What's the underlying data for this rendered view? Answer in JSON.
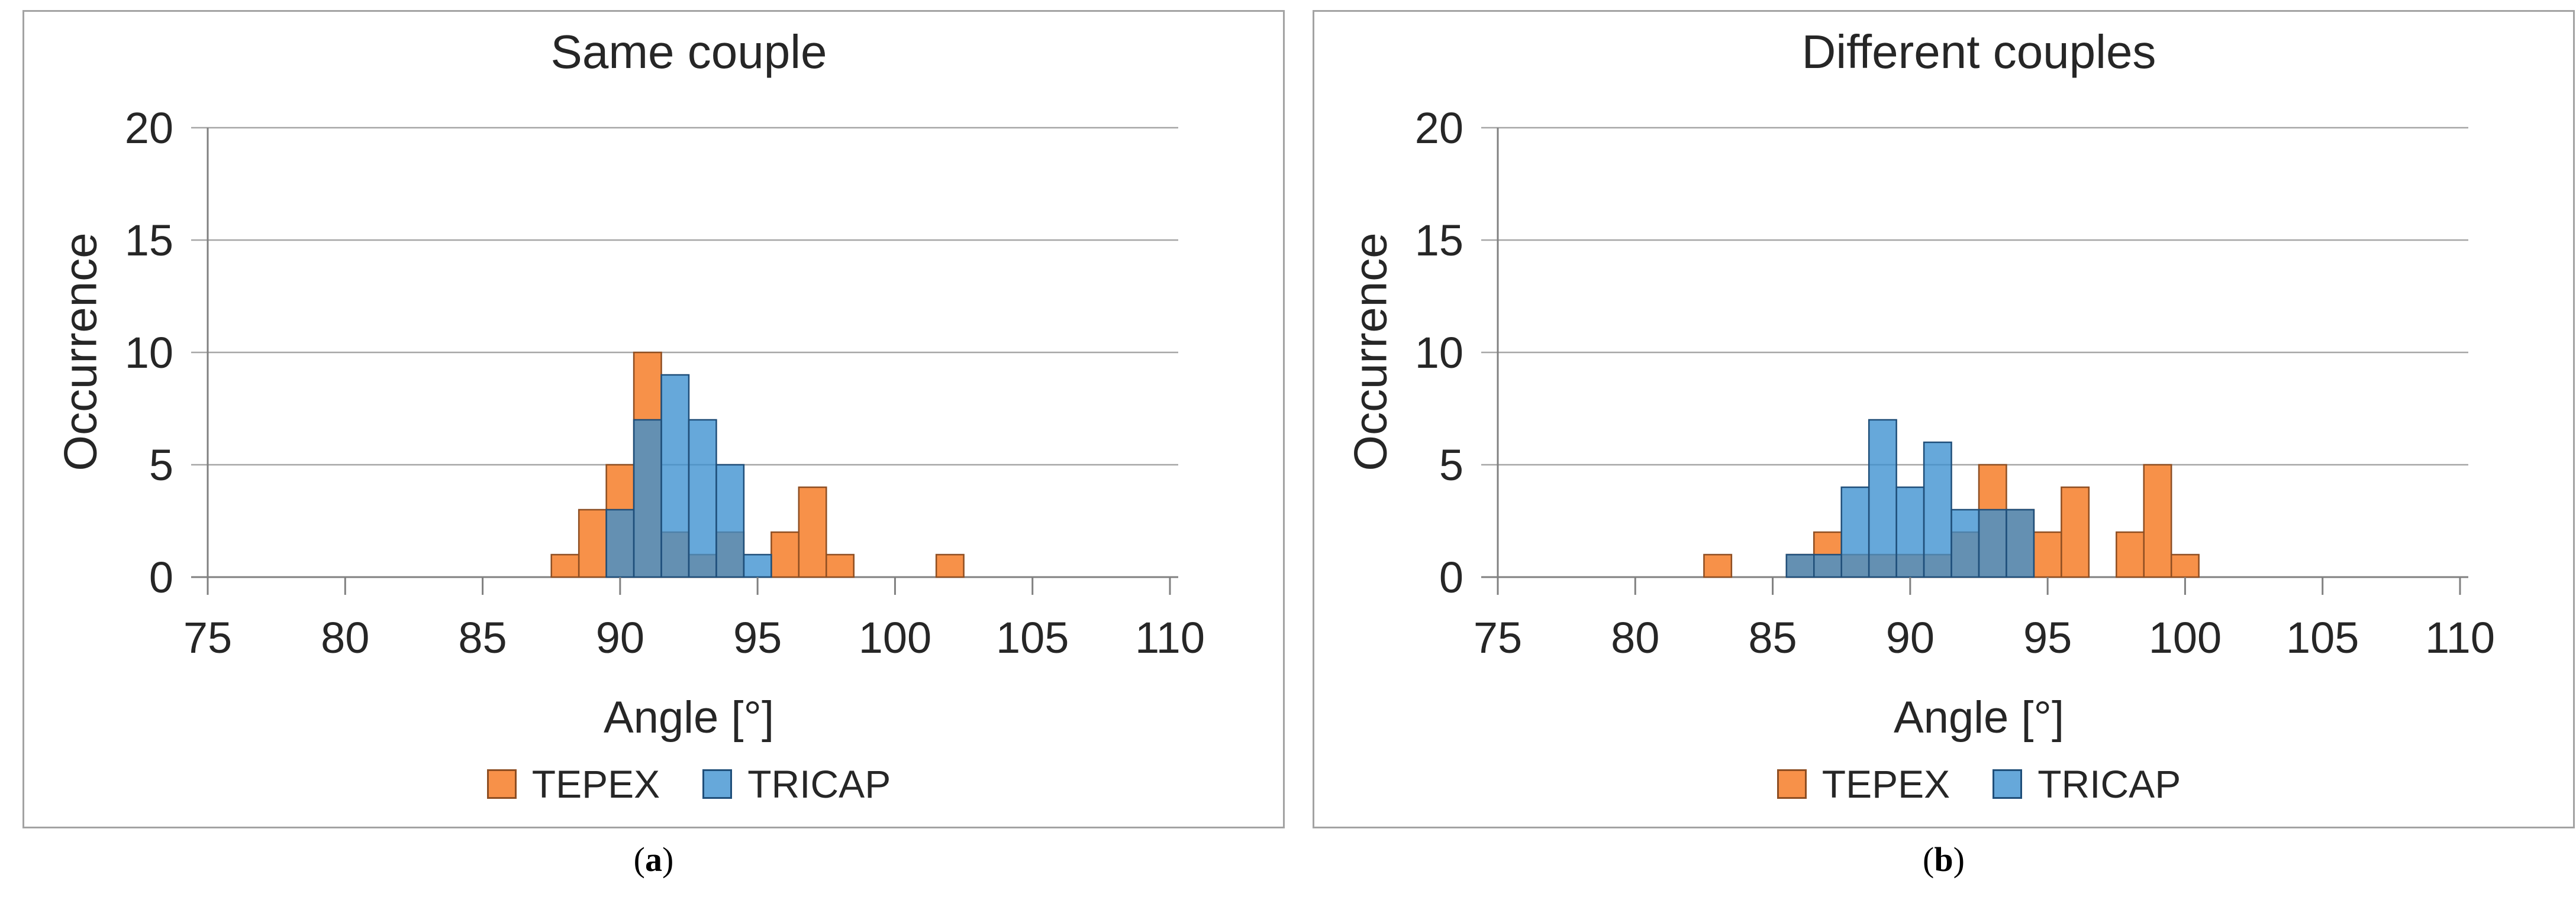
{
  "figure": {
    "background": "#ffffff",
    "panel_border_color": "#a3a3a3",
    "gridline_color": "#a6a6a6",
    "axis_color": "#808080"
  },
  "chart_data": [
    {
      "type": "bar",
      "subtype": "overlapping-histogram",
      "title": "Same couple",
      "xlabel": "Angle [°]",
      "ylabel": "Occurrence",
      "caption": {
        "open": "(",
        "letter": "a",
        "close": ")"
      },
      "xlim": [
        75,
        110
      ],
      "ylim": [
        0,
        20
      ],
      "xticks": [
        75,
        80,
        85,
        90,
        95,
        100,
        105,
        110
      ],
      "yticks": [
        0,
        5,
        10,
        15,
        20
      ],
      "bin_width": 1,
      "grid": "horizontal",
      "legend_position": "bottom",
      "series": [
        {
          "name": "TEPEX",
          "fill": "#F79149",
          "stroke": "#8E4E22",
          "fill_opacity": 1,
          "points": [
            [
              88,
              1
            ],
            [
              89,
              3
            ],
            [
              90,
              5
            ],
            [
              91,
              10
            ],
            [
              92,
              2
            ],
            [
              93,
              1
            ],
            [
              94,
              2
            ],
            [
              96,
              2
            ],
            [
              97,
              4
            ],
            [
              98,
              1
            ],
            [
              102,
              1
            ]
          ]
        },
        {
          "name": "TRICAP",
          "fill": "#3B8FD0",
          "stroke": "#1F4E79",
          "fill_opacity": 0.78,
          "points": [
            [
              90,
              3
            ],
            [
              91,
              7
            ],
            [
              92,
              9
            ],
            [
              93,
              7
            ],
            [
              94,
              5
            ],
            [
              95,
              1
            ]
          ]
        }
      ]
    },
    {
      "type": "bar",
      "subtype": "overlapping-histogram",
      "title": "Different couples",
      "xlabel": "Angle [°]",
      "ylabel": "Occurrence",
      "caption": {
        "open": "(",
        "letter": "b",
        "close": ")"
      },
      "xlim": [
        75,
        110
      ],
      "ylim": [
        0,
        20
      ],
      "xticks": [
        75,
        80,
        85,
        90,
        95,
        100,
        105,
        110
      ],
      "yticks": [
        0,
        5,
        10,
        15,
        20
      ],
      "bin_width": 1,
      "grid": "horizontal",
      "legend_position": "bottom",
      "series": [
        {
          "name": "TEPEX",
          "fill": "#F79149",
          "stroke": "#8E4E22",
          "fill_opacity": 1,
          "points": [
            [
              83,
              1
            ],
            [
              86,
              1
            ],
            [
              87,
              2
            ],
            [
              88,
              1
            ],
            [
              89,
              1
            ],
            [
              90,
              1
            ],
            [
              91,
              1
            ],
            [
              92,
              2
            ],
            [
              93,
              5
            ],
            [
              94,
              3
            ],
            [
              95,
              2
            ],
            [
              96,
              4
            ],
            [
              98,
              2
            ],
            [
              99,
              5
            ],
            [
              100,
              1
            ]
          ]
        },
        {
          "name": "TRICAP",
          "fill": "#3B8FD0",
          "stroke": "#1F4E79",
          "fill_opacity": 0.78,
          "points": [
            [
              86,
              1
            ],
            [
              87,
              1
            ],
            [
              88,
              4
            ],
            [
              89,
              7
            ],
            [
              90,
              4
            ],
            [
              91,
              6
            ],
            [
              92,
              3
            ],
            [
              93,
              3
            ],
            [
              94,
              3
            ]
          ]
        }
      ]
    }
  ]
}
